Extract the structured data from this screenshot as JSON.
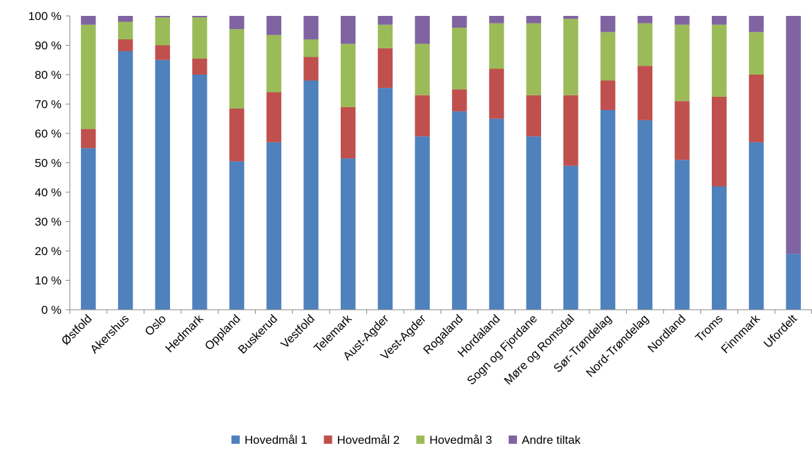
{
  "chart_data": {
    "type": "bar",
    "stacked": true,
    "percent_axis": true,
    "title": "",
    "xlabel": "",
    "ylabel": "",
    "ylim": [
      0,
      100
    ],
    "yticks": [
      {
        "value": 0,
        "label": "0 %"
      },
      {
        "value": 10,
        "label": "10 %"
      },
      {
        "value": 20,
        "label": "20 %"
      },
      {
        "value": 30,
        "label": "30 %"
      },
      {
        "value": 40,
        "label": "40 %"
      },
      {
        "value": 50,
        "label": "50 %"
      },
      {
        "value": 60,
        "label": "60 %"
      },
      {
        "value": 70,
        "label": "70 %"
      },
      {
        "value": 80,
        "label": "80 %"
      },
      {
        "value": 90,
        "label": "90 %"
      },
      {
        "value": 100,
        "label": "100 %"
      }
    ],
    "grid": false,
    "legend_position": "bottom",
    "categories": [
      "Østfold",
      "Akershus",
      "Oslo",
      "Hedmark",
      "Oppland",
      "Buskerud",
      "Vestfold",
      "Telemark",
      "Aust-Agder",
      "Vest-Agder",
      "Rogaland",
      "Hordaland",
      "Sogn og Fjordane",
      "Møre og Romsdal",
      "Sør-Trøndelag",
      "Nord-Trøndelag",
      "Nordland",
      "Troms",
      "Finnmark",
      "Ufordelt"
    ],
    "series": [
      {
        "name": "Hovedmål 1",
        "color": "#4F81BD",
        "values": [
          55,
          88,
          85,
          80,
          50.5,
          57,
          78,
          51.5,
          75.5,
          59,
          67.5,
          65,
          59,
          49,
          68,
          64.5,
          51,
          42,
          57,
          19
        ]
      },
      {
        "name": "Hovedmål 2",
        "color": "#C0504D",
        "values": [
          6.5,
          4,
          5,
          5.5,
          18,
          17,
          8,
          17.5,
          13.5,
          14,
          7.5,
          17,
          14,
          24,
          10,
          18.5,
          20,
          30.5,
          23,
          0
        ]
      },
      {
        "name": "Hovedmål 3",
        "color": "#9BBB59",
        "values": [
          35.5,
          6,
          9.5,
          14,
          27,
          19.5,
          6,
          21.5,
          8,
          17.5,
          21,
          15.5,
          24.5,
          26,
          16.5,
          14.5,
          26,
          24.5,
          14.5,
          0
        ]
      },
      {
        "name": "Andre tiltak",
        "color": "#8064A2",
        "values": [
          3,
          2,
          0.5,
          0.5,
          4.5,
          6.5,
          8,
          9.5,
          3,
          9.5,
          4,
          2.5,
          2.5,
          1,
          5.5,
          2.5,
          3,
          3,
          5.5,
          81
        ]
      }
    ]
  }
}
